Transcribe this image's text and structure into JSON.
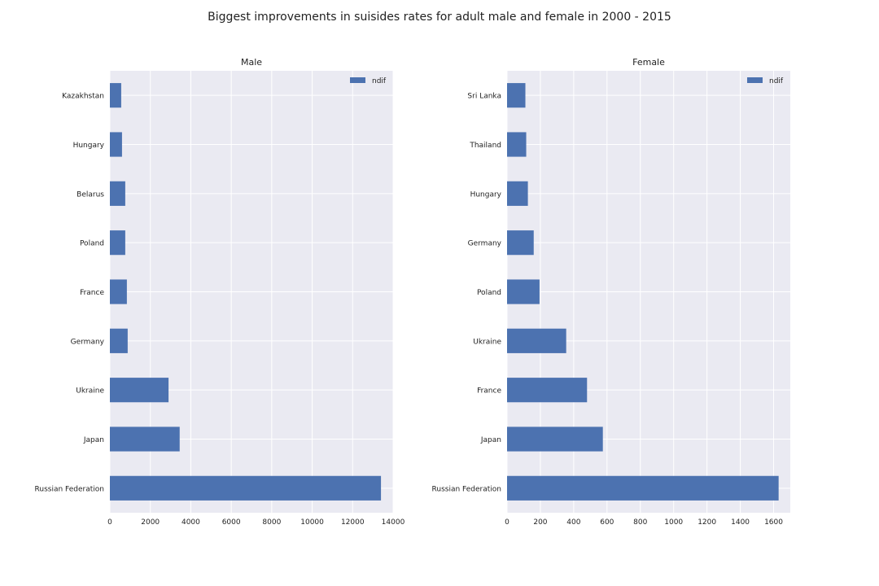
{
  "figure": {
    "title": "Biggest improvements in suisides rates for adult male and female in 2000 - 2015"
  },
  "colors": {
    "bar": "#4c72b0",
    "plot_background": "#eaeaf2",
    "grid": "#ffffff"
  },
  "chart_data": [
    {
      "type": "bar",
      "orientation": "horizontal",
      "title": "Male",
      "xlabel": "",
      "ylabel": "",
      "categories": [
        "Russian Federation",
        "Japan",
        "Ukraine",
        "Germany",
        "France",
        "Poland",
        "Belarus",
        "Hungary",
        "Kazakhstan"
      ],
      "series": [
        {
          "name": "ndif",
          "values": [
            13400,
            3450,
            2900,
            880,
            840,
            760,
            760,
            600,
            560
          ]
        }
      ],
      "xlim": [
        0,
        14000
      ],
      "xticks": [
        0,
        2000,
        4000,
        6000,
        8000,
        10000,
        12000,
        14000
      ],
      "grid": true,
      "legend_position": "upper right"
    },
    {
      "type": "bar",
      "orientation": "horizontal",
      "title": "Female",
      "xlabel": "",
      "ylabel": "",
      "categories": [
        "Russian Federation",
        "Japan",
        "France",
        "Ukraine",
        "Poland",
        "Germany",
        "Hungary",
        "Thailand",
        "Sri Lanka"
      ],
      "series": [
        {
          "name": "ndif",
          "values": [
            1630,
            575,
            480,
            355,
            195,
            160,
            125,
            115,
            110
          ]
        }
      ],
      "xlim": [
        0,
        1700
      ],
      "xticks": [
        0,
        200,
        400,
        600,
        800,
        1000,
        1200,
        1400,
        1600
      ],
      "grid": true,
      "legend_position": "upper right"
    }
  ]
}
